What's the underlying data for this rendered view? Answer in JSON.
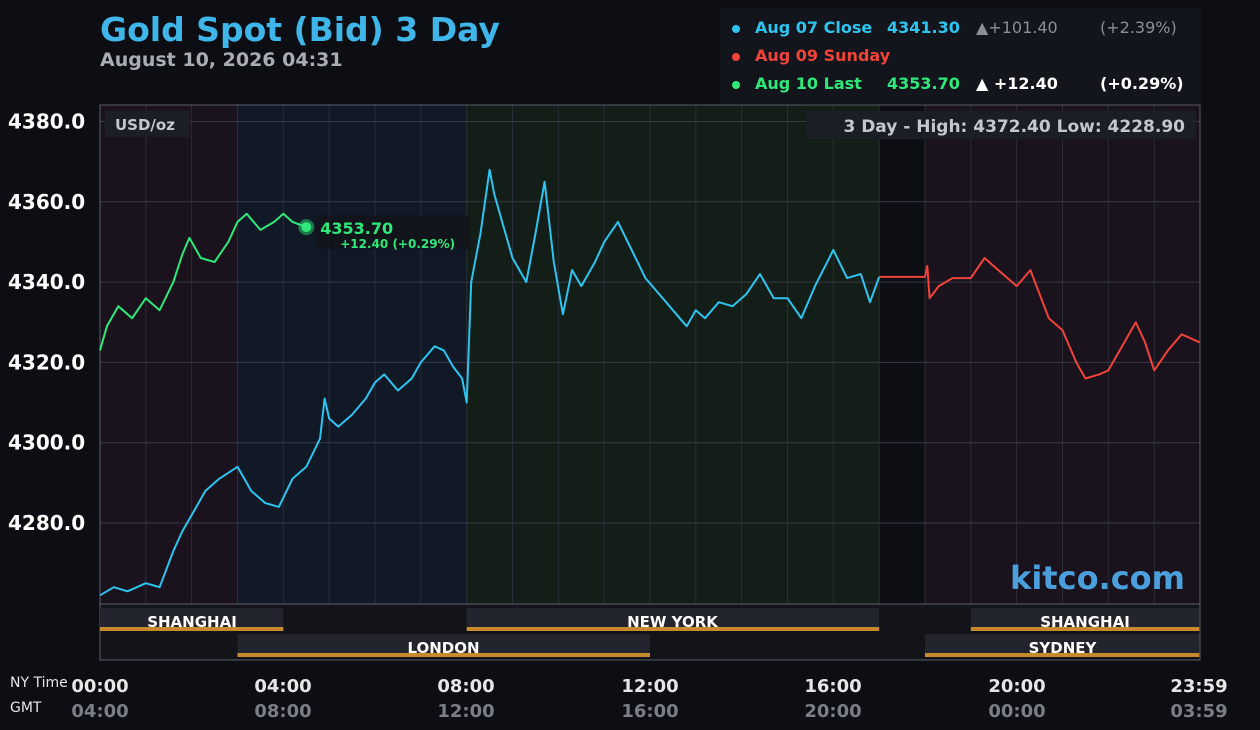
{
  "header": {
    "title": "Gold Spot (Bid) 3 Day",
    "subtitle": "August 10, 2026 04:31"
  },
  "legend": [
    {
      "label": "Aug 07 Close",
      "value": "4341.30",
      "change": "▲+101.40",
      "pct": "(+2.39%)",
      "color": "#2ec4f0",
      "valueColor": "#2ec4f0",
      "changeColor": "#8a8f98"
    },
    {
      "label": "Aug 09 Sunday",
      "value": "",
      "change": "",
      "pct": "",
      "color": "#f0433a",
      "valueColor": "#f0433a",
      "changeColor": "#ffffff"
    },
    {
      "label": "Aug 10 Last",
      "value": "4353.70",
      "change": "▲  +12.40",
      "pct": "(+0.29%)",
      "color": "#2fe87a",
      "valueColor": "#2fe87a",
      "changeColor": "#ffffff"
    }
  ],
  "chart_labels": {
    "unit": "USD/oz",
    "range_text": "3 Day - High: 4372.40  Low: 4228.90",
    "last_marker_value": "4353.70",
    "last_marker_change": "+12.40 (+0.29%)",
    "watermark": "kitco.com"
  },
  "sessions": {
    "top": [
      {
        "name": "SHANGHAI",
        "start": "00:00",
        "end": "04:00"
      },
      {
        "name": "NEW YORK",
        "start": "08:00",
        "end": "17:00"
      },
      {
        "name": "SHANGHAI",
        "start": "19:00",
        "end": "23:59"
      }
    ],
    "bottom": [
      {
        "name": "LONDON",
        "start": "03:00",
        "end": "12:00"
      },
      {
        "name": "SYDNEY",
        "start": "18:00",
        "end": "23:59"
      }
    ]
  },
  "time_axis": {
    "row1_label": "NY Time",
    "row2_label": "GMT",
    "ticks": [
      {
        "ny": "00:00",
        "gmt": "04:00"
      },
      {
        "ny": "04:00",
        "gmt": "08:00"
      },
      {
        "ny": "08:00",
        "gmt": "12:00"
      },
      {
        "ny": "12:00",
        "gmt": "16:00"
      },
      {
        "ny": "16:00",
        "gmt": "20:00"
      },
      {
        "ny": "20:00",
        "gmt": "00:00"
      },
      {
        "ny": "23:59",
        "gmt": "03:59"
      }
    ]
  },
  "colors": {
    "aug07": "#2ec4f0",
    "aug09": "#f0433a",
    "aug10": "#2fe87a",
    "session_bar": "#c98a2e",
    "title": "#3fb6ea"
  },
  "chart_data": {
    "type": "line",
    "title": "Gold Spot (Bid) 3 Day",
    "ylabel": "USD/oz",
    "xlabel": "NY Time",
    "x_unit": "hours (NY time)",
    "ylim": [
      4260,
      4385
    ],
    "xlim": [
      0,
      24
    ],
    "y_ticks": [
      4280.0,
      4300.0,
      4320.0,
      4340.0,
      4360.0,
      4380.0
    ],
    "y_tick_labels": [
      "4280.0",
      "4300.0",
      "4320.0",
      "4340.0",
      "4360.0",
      "4380.0"
    ],
    "grid": true,
    "high": 4372.4,
    "low": 4228.9,
    "series": [
      {
        "name": "Aug 07 Close",
        "color": "#2ec4f0",
        "x": [
          0,
          0.3,
          0.6,
          1.0,
          1.3,
          1.6,
          1.8,
          2.0,
          2.3,
          2.6,
          3.0,
          3.3,
          3.6,
          3.9,
          4.2,
          4.5,
          4.8,
          4.9,
          5.0,
          5.2,
          5.5,
          5.8,
          6.0,
          6.2,
          6.5,
          6.8,
          7.0,
          7.3,
          7.5,
          7.7,
          7.9,
          8.0,
          8.1,
          8.3,
          8.5,
          8.6,
          8.8,
          9.0,
          9.3,
          9.5,
          9.7,
          9.9,
          10.1,
          10.3,
          10.5,
          10.8,
          11.0,
          11.3,
          11.6,
          11.9,
          12.2,
          12.5,
          12.8,
          13.0,
          13.2,
          13.5,
          13.8,
          14.1,
          14.4,
          14.7,
          15.0,
          15.3,
          15.6,
          16.0,
          16.3,
          16.6,
          16.8,
          17.0
        ],
        "y": [
          4262,
          4264,
          4263,
          4265,
          4264,
          4273,
          4278,
          4282,
          4288,
          4291,
          4294,
          4288,
          4285,
          4284,
          4291,
          4294,
          4301,
          4311,
          4306,
          4304,
          4307,
          4311,
          4315,
          4317,
          4313,
          4316,
          4320,
          4324,
          4323,
          4319,
          4316,
          4310,
          4340,
          4352,
          4368,
          4362,
          4354,
          4346,
          4340,
          4352,
          4365,
          4345,
          4332,
          4343,
          4339,
          4345,
          4350,
          4355,
          4348,
          4341,
          4337,
          4333,
          4329,
          4333,
          4331,
          4335,
          4334,
          4337,
          4342,
          4336,
          4336,
          4331,
          4339,
          4348,
          4341,
          4342,
          4335,
          4341.3
        ]
      },
      {
        "name": "Aug 09 Sunday",
        "color": "#f0433a",
        "x": [
          17.0,
          18.0,
          18.05,
          18.1,
          18.3,
          18.6,
          19.0,
          19.3,
          19.6,
          19.8,
          20.0,
          20.3,
          20.5,
          20.7,
          21.0,
          21.3,
          21.5,
          21.8,
          22.0,
          22.3,
          22.6,
          22.8,
          23.0,
          23.3,
          23.6,
          23.99
        ],
        "y": [
          4341.3,
          4341.3,
          4344,
          4336,
          4339,
          4341,
          4341,
          4346,
          4343,
          4341,
          4339,
          4343,
          4337,
          4331,
          4328,
          4320,
          4316,
          4317,
          4318,
          4324,
          4330,
          4325,
          4318,
          4323,
          4327,
          4325
        ]
      },
      {
        "name": "Aug 10 Last",
        "color": "#2fe87a",
        "x": [
          0,
          0.15,
          0.4,
          0.7,
          1.0,
          1.3,
          1.6,
          1.8,
          1.95,
          2.2,
          2.5,
          2.8,
          3.0,
          3.2,
          3.5,
          3.8,
          4.0,
          4.2,
          4.5
        ],
        "y": [
          4323,
          4329,
          4334,
          4331,
          4336,
          4333,
          4340,
          4347,
          4351,
          4346,
          4345,
          4350,
          4355,
          4357,
          4353,
          4355,
          4357,
          4355,
          4353.7
        ]
      }
    ]
  }
}
